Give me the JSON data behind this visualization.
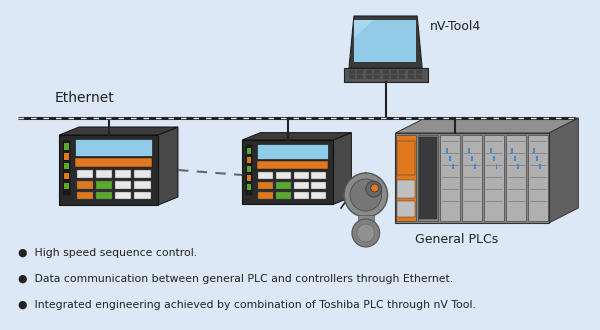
{
  "background_color": "#dce8f5",
  "text_color": "#222222",
  "line_color": "#222222",
  "ethernet_label": "Ethernet",
  "laptop_label": "nV-Tool4",
  "plc_label": "General PLCs",
  "bullet_points": [
    "High speed sequence control.",
    "Data communication between general PLC and controllers through Ethernet.",
    "Integrated engineering achieved by combination of Toshiba PLC through nV Tool."
  ],
  "orange": "#e07820",
  "green": "#5aaa30",
  "yellow": "#f0c020",
  "white_btn": "#e8e8e8",
  "screen_blue": "#90cce8",
  "ctrl_dark": "#2a2a2a",
  "ctrl_side": "#484848",
  "ctrl_top": "#3c3c3c",
  "ctrl_ledstrip": "#1a1a1a",
  "plc_gray": "#8a8a8a",
  "plc_light": "#aaaaaa",
  "plc_dark": "#555555",
  "plc_blue": "#4488cc"
}
